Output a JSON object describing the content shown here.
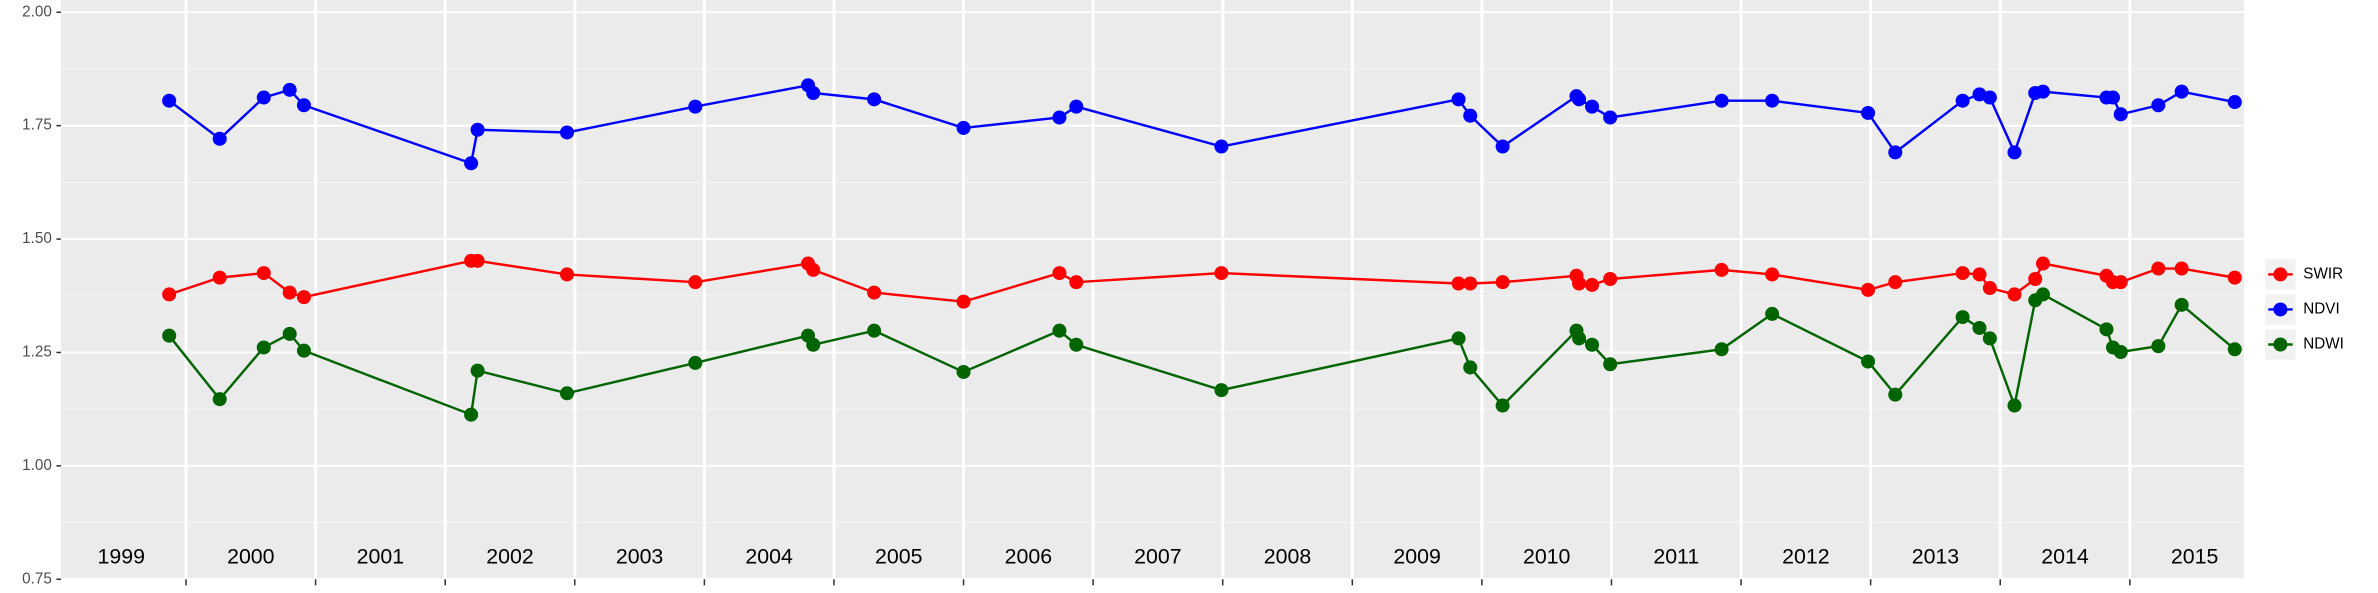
{
  "chart_data": {
    "type": "line",
    "x": [
      1999.87,
      2000.26,
      2000.6,
      2000.8,
      2000.91,
      2002.2,
      2002.25,
      2002.94,
      2003.93,
      2004.8,
      2004.84,
      2005.31,
      2006.0,
      2006.74,
      2006.87,
      2007.99,
      2009.82,
      2009.91,
      2010.16,
      2010.73,
      2010.75,
      2010.85,
      2010.99,
      2011.85,
      2012.24,
      2012.98,
      2013.19,
      2013.71,
      2013.84,
      2013.92,
      2014.11,
      2014.27,
      2014.33,
      2014.82,
      2014.87,
      2014.93,
      2015.22,
      2015.4,
      2015.81
    ],
    "series": [
      {
        "name": "SWIR",
        "color": "#ff0000",
        "values": [
          1.378,
          1.415,
          1.425,
          1.382,
          1.372,
          1.452,
          1.452,
          1.422,
          1.405,
          1.446,
          1.432,
          1.382,
          1.362,
          1.425,
          1.405,
          1.425,
          1.402,
          1.402,
          1.405,
          1.419,
          1.402,
          1.399,
          1.412,
          1.432,
          1.422,
          1.388,
          1.405,
          1.425,
          1.422,
          1.392,
          1.378,
          1.412,
          1.446,
          1.419,
          1.405,
          1.405,
          1.435,
          1.435,
          1.415
        ]
      },
      {
        "name": "NDVI",
        "color": "#0000ff",
        "values": [
          1.805,
          1.721,
          1.812,
          1.829,
          1.795,
          1.667,
          1.741,
          1.735,
          1.792,
          1.839,
          1.822,
          1.808,
          1.745,
          1.768,
          1.792,
          1.704,
          1.808,
          1.772,
          1.704,
          1.815,
          1.808,
          1.792,
          1.768,
          1.805,
          1.805,
          1.778,
          1.691,
          1.805,
          1.819,
          1.812,
          1.691,
          1.822,
          1.825,
          1.812,
          1.812,
          1.775,
          1.795,
          1.825,
          1.802
        ]
      },
      {
        "name": "NDWI",
        "color": "#006400",
        "values": [
          1.287,
          1.147,
          1.261,
          1.291,
          1.254,
          1.113,
          1.21,
          1.16,
          1.227,
          1.287,
          1.267,
          1.298,
          1.207,
          1.298,
          1.267,
          1.167,
          1.281,
          1.217,
          1.133,
          1.298,
          1.281,
          1.267,
          1.224,
          1.257,
          1.335,
          1.23,
          1.157,
          1.328,
          1.304,
          1.281,
          1.133,
          1.365,
          1.378,
          1.301,
          1.261,
          1.251,
          1.264,
          1.355,
          1.257
        ]
      }
    ],
    "xlim": [
      1999.035,
      2015.88
    ],
    "xticks": [
      {
        "value": 1999.5,
        "label": "1999"
      },
      {
        "value": 2000.5,
        "label": "2000"
      },
      {
        "value": 2001.5,
        "label": "2001"
      },
      {
        "value": 2002.5,
        "label": "2002"
      },
      {
        "value": 2003.5,
        "label": "2003"
      },
      {
        "value": 2004.5,
        "label": "2004"
      },
      {
        "value": 2005.5,
        "label": "2005"
      },
      {
        "value": 2006.5,
        "label": "2006"
      },
      {
        "value": 2007.5,
        "label": "2007"
      },
      {
        "value": 2008.5,
        "label": "2008"
      },
      {
        "value": 2009.5,
        "label": "2009"
      },
      {
        "value": 2010.5,
        "label": "2010"
      },
      {
        "value": 2011.5,
        "label": "2011"
      },
      {
        "value": 2012.5,
        "label": "2012"
      },
      {
        "value": 2013.5,
        "label": "2013"
      },
      {
        "value": 2014.5,
        "label": "2014"
      },
      {
        "value": 2015.5,
        "label": "2015"
      }
    ],
    "xgrid": [
      2000,
      2001,
      2002,
      2003,
      2004,
      2005,
      2006,
      2007,
      2008,
      2009,
      2010,
      2011,
      2012,
      2013,
      2014,
      2015
    ],
    "ylim": [
      0.75,
      2.027
    ],
    "yticks": [
      {
        "value": 0.75,
        "label": "0.75"
      },
      {
        "value": 1,
        "label": "1.00"
      },
      {
        "value": 1.25,
        "label": "1.25"
      },
      {
        "value": 1.5,
        "label": "1.50"
      },
      {
        "value": 1.75,
        "label": "1.75"
      },
      {
        "value": 2,
        "label": "2.00"
      }
    ],
    "yminor": [
      0.875,
      1.125,
      1.375,
      1.625,
      1.875
    ],
    "grid": true,
    "legend": "right"
  }
}
